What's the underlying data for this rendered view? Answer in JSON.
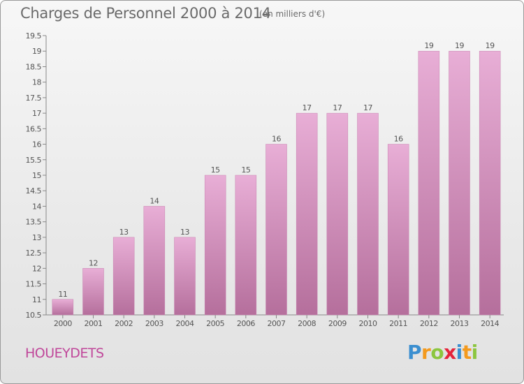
{
  "header": {
    "title": "Charges de Personnel 2000 à 2014",
    "unit_note": "(en milliers d'€)"
  },
  "commune": "HOUEYDETS",
  "logo": {
    "text": "Proxiti",
    "letters": [
      {
        "ch": "P",
        "color": "#3b8fd0"
      },
      {
        "ch": "r",
        "color": "#f39a1e"
      },
      {
        "ch": "o",
        "color": "#8cc63f"
      },
      {
        "ch": "x",
        "color": "#e5243b"
      },
      {
        "ch": "i",
        "color": "#3b8fd0"
      },
      {
        "ch": "t",
        "color": "#f39a1e"
      },
      {
        "ch": "i",
        "color": "#8cc63f"
      }
    ]
  },
  "colors": {
    "bar_top": "#e8aed6",
    "bar_bottom": "#b56f9c",
    "bar_edge": "#c882b0",
    "text": "#555555",
    "commune": "#c0479a"
  },
  "chart_data": {
    "type": "bar",
    "title": "Charges de Personnel 2000 à 2014",
    "subtitle": "(en milliers d'€)",
    "categories": [
      "2000",
      "2001",
      "2002",
      "2003",
      "2004",
      "2005",
      "2006",
      "2007",
      "2008",
      "2009",
      "2010",
      "2011",
      "2012",
      "2013",
      "2014"
    ],
    "values": [
      11,
      12,
      13,
      14,
      13,
      15,
      15,
      16,
      17,
      17,
      17,
      16,
      19,
      19,
      19
    ],
    "value_labels": [
      "11",
      "12",
      "13",
      "14",
      "13",
      "15",
      "15",
      "16",
      "17",
      "17",
      "17",
      "16",
      "19",
      "19",
      "19"
    ],
    "ylim": [
      10.5,
      19.5
    ],
    "yticks": [
      "10.5",
      "11",
      "11.5",
      "12",
      "12.5",
      "13",
      "13.5",
      "14",
      "14.5",
      "15",
      "15.5",
      "16",
      "16.5",
      "17",
      "17.5",
      "18",
      "18.5",
      "19",
      "19.5"
    ],
    "grid": false,
    "xlabel": "",
    "ylabel": ""
  }
}
